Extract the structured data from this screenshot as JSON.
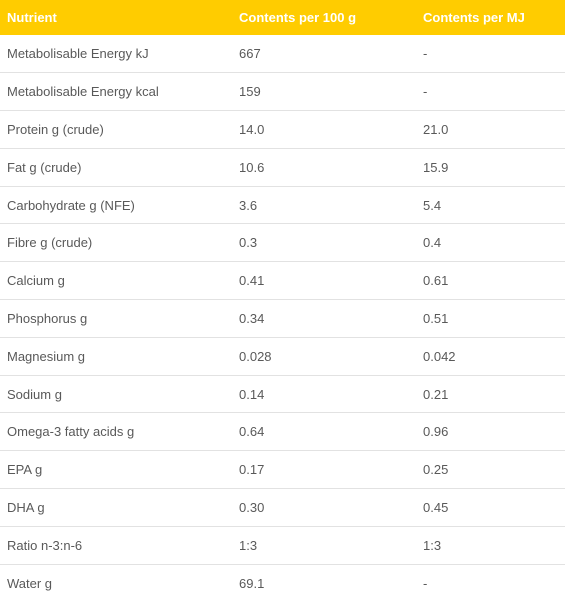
{
  "colors": {
    "header_bg": "#ffcc00",
    "header_text": "#ffffff",
    "body_text": "#595959",
    "row_divider": "#e2e2e2"
  },
  "table": {
    "headers": [
      "Nutrient",
      "Contents per 100 g",
      "Contents per MJ"
    ],
    "rows": [
      [
        "Metabolisable Energy kJ",
        "667",
        "-"
      ],
      [
        "Metabolisable Energy kcal",
        "159",
        "-"
      ],
      [
        "Protein g (crude)",
        "14.0",
        "21.0"
      ],
      [
        "Fat g (crude)",
        "10.6",
        "15.9"
      ],
      [
        "Carbohydrate g (NFE)",
        "3.6",
        "5.4"
      ],
      [
        "Fibre g (crude)",
        "0.3",
        "0.4"
      ],
      [
        "Calcium g",
        "0.41",
        "0.61"
      ],
      [
        "Phosphorus g",
        "0.34",
        "0.51"
      ],
      [
        "Magnesium g",
        "0.028",
        "0.042"
      ],
      [
        "Sodium g",
        "0.14",
        "0.21"
      ],
      [
        "Omega-3 fatty acids g",
        "0.64",
        "0.96"
      ],
      [
        "EPA g",
        "0.17",
        "0.25"
      ],
      [
        "DHA g",
        "0.30",
        "0.45"
      ],
      [
        "Ratio n-3:n-6",
        "1:3",
        "1:3"
      ],
      [
        "Water g",
        "69.1",
        "-"
      ]
    ]
  }
}
